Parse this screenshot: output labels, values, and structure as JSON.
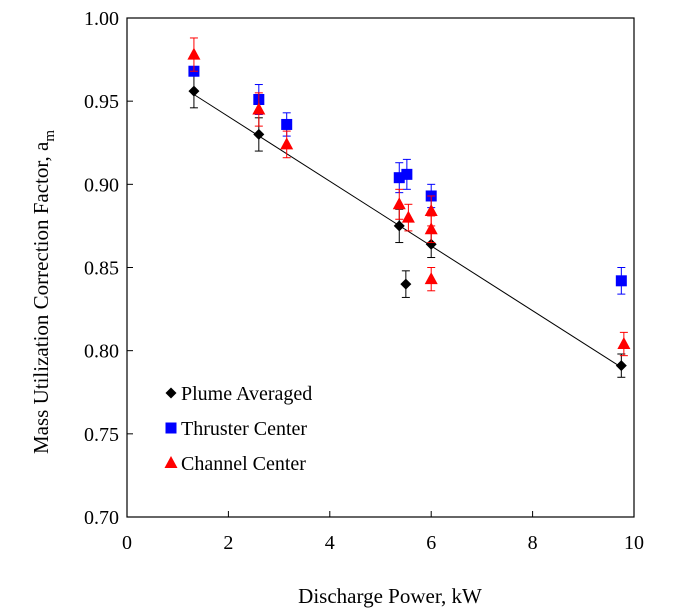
{
  "chart_data": {
    "type": "scatter",
    "title": "",
    "xlabel": "Discharge Power, kW",
    "ylabel_main": "Mass Utilization Correction Factor, a",
    "ylabel_sub": "m",
    "xlim": [
      0,
      10
    ],
    "ylim": [
      0.7,
      1.0
    ],
    "xticks": [
      "0",
      "2",
      "4",
      "6",
      "8",
      "10"
    ],
    "yticks": [
      "0.70",
      "0.75",
      "0.80",
      "0.85",
      "0.90",
      "0.95",
      "1.00"
    ],
    "grid": false,
    "legend_position": "bottom-left",
    "series": [
      {
        "name": "Plume Averaged",
        "marker": "diamond",
        "color": "#000000",
        "points": [
          {
            "x": 1.32,
            "y": 0.956,
            "err": 0.01
          },
          {
            "x": 2.6,
            "y": 0.93,
            "err": 0.01
          },
          {
            "x": 5.37,
            "y": 0.875,
            "err": 0.01
          },
          {
            "x": 5.5,
            "y": 0.84,
            "err": 0.008
          },
          {
            "x": 6.0,
            "y": 0.864,
            "err": 0.008
          },
          {
            "x": 9.75,
            "y": 0.791,
            "err": 0.007
          }
        ]
      },
      {
        "name": "Thruster Center",
        "marker": "square",
        "color": "#0000ff",
        "points": [
          {
            "x": 1.32,
            "y": 0.968,
            "err": 0.0
          },
          {
            "x": 2.6,
            "y": 0.951,
            "err": 0.009
          },
          {
            "x": 3.15,
            "y": 0.936,
            "err": 0.007
          },
          {
            "x": 5.37,
            "y": 0.904,
            "err": 0.009
          },
          {
            "x": 5.52,
            "y": 0.906,
            "err": 0.009
          },
          {
            "x": 6.0,
            "y": 0.893,
            "err": 0.007
          },
          {
            "x": 9.75,
            "y": 0.842,
            "err": 0.008
          }
        ]
      },
      {
        "name": "Channel Center",
        "marker": "triangle",
        "color": "#ff0000",
        "points": [
          {
            "x": 1.32,
            "y": 0.978,
            "err": 0.01
          },
          {
            "x": 2.6,
            "y": 0.945,
            "err": 0.01
          },
          {
            "x": 3.15,
            "y": 0.924,
            "err": 0.008
          },
          {
            "x": 5.37,
            "y": 0.888,
            "err": 0.009
          },
          {
            "x": 5.55,
            "y": 0.88,
            "err": 0.008
          },
          {
            "x": 6.0,
            "y": 0.884,
            "err": 0.009
          },
          {
            "x": 6.0,
            "y": 0.873,
            "err": 0.008
          },
          {
            "x": 6.0,
            "y": 0.843,
            "err": 0.007
          },
          {
            "x": 9.8,
            "y": 0.804,
            "err": 0.007
          }
        ]
      }
    ],
    "trendline": {
      "x": [
        1.32,
        9.75
      ],
      "y": [
        0.954,
        0.79
      ]
    }
  }
}
